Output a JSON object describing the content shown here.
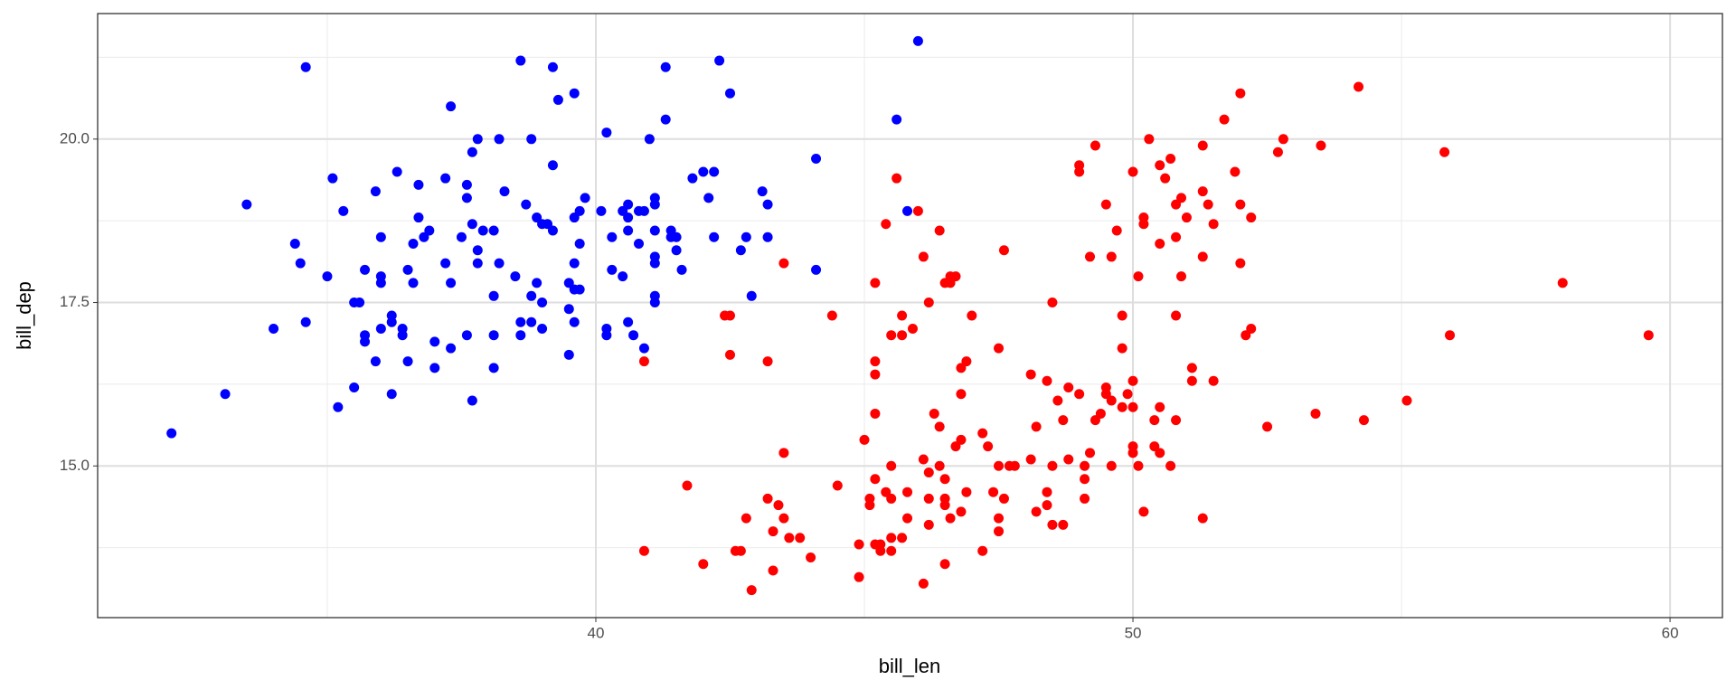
{
  "chart_data": {
    "type": "scatter",
    "x_label": "bill_len",
    "y_label": "bill_dep",
    "xlim": [
      30.725,
      60.975
    ],
    "ylim": [
      12.68,
      21.92
    ],
    "xticks": [
      40,
      50,
      60
    ],
    "yticks": [
      {
        "value": 15,
        "label": "15.0"
      },
      {
        "value": 17.5,
        "label": "17.5"
      },
      {
        "value": 20,
        "label": "20.0"
      }
    ],
    "xminor": [
      35,
      45,
      55
    ],
    "yminor": [
      13.75,
      16.25,
      18.75,
      21.25
    ],
    "grid": true,
    "series": [
      {
        "color": "#0000ff",
        "x": [
          32.1,
          33.1,
          33.5,
          34.0,
          34.4,
          34.5,
          34.6,
          34.6,
          35.0,
          35.1,
          35.2,
          35.3,
          35.5,
          35.5,
          35.6,
          35.7,
          35.7,
          35.7,
          35.9,
          35.9,
          36.0,
          36.0,
          36.0,
          36.0,
          36.2,
          36.2,
          36.2,
          36.3,
          36.4,
          36.4,
          36.5,
          36.5,
          36.6,
          36.6,
          36.7,
          36.7,
          36.8,
          36.9,
          37.0,
          37.0,
          37.2,
          37.2,
          37.3,
          37.3,
          37.3,
          37.5,
          37.6,
          37.6,
          37.6,
          37.7,
          37.7,
          37.7,
          37.8,
          37.8,
          37.8,
          37.9,
          38.1,
          38.1,
          38.1,
          38.1,
          38.2,
          38.2,
          38.3,
          38.5,
          38.6,
          38.6,
          38.6,
          38.7,
          38.8,
          38.8,
          38.8,
          38.9,
          38.9,
          39.0,
          39.0,
          39.0,
          39.1,
          39.2,
          39.2,
          39.2,
          39.3,
          39.5,
          39.5,
          39.5,
          39.6,
          39.6,
          39.6,
          39.6,
          39.6,
          39.7,
          39.7,
          39.7,
          39.8,
          40.1,
          40.2,
          40.2,
          40.2,
          40.3,
          40.3,
          40.5,
          40.5,
          40.6,
          40.6,
          40.6,
          40.6,
          40.7,
          40.8,
          40.8,
          40.9,
          40.9,
          41.0,
          41.1,
          41.1,
          41.1,
          41.1,
          41.1,
          41.1,
          41.1,
          41.3,
          41.3,
          41.4,
          41.4,
          41.5,
          41.5,
          41.6,
          41.8,
          42.0,
          42.1,
          42.2,
          42.2,
          42.3,
          42.5,
          42.7,
          42.8,
          42.9,
          43.1,
          43.2,
          43.2,
          44.1,
          44.1,
          45.6,
          45.8,
          46.0
        ],
        "values": [
          15.5,
          16.1,
          19.0,
          17.1,
          18.4,
          18.1,
          21.1,
          17.2,
          17.9,
          19.4,
          15.9,
          18.9,
          17.5,
          16.2,
          17.5,
          17.0,
          16.9,
          18.0,
          19.2,
          16.6,
          18.5,
          17.9,
          17.8,
          17.1,
          17.3,
          17.2,
          16.1,
          19.5,
          17.1,
          17.0,
          18.0,
          16.6,
          18.4,
          17.8,
          19.3,
          18.8,
          18.5,
          18.6,
          16.9,
          16.5,
          19.4,
          18.1,
          20.5,
          17.8,
          16.8,
          18.5,
          19.3,
          19.1,
          17.0,
          19.8,
          18.7,
          16.0,
          20.0,
          18.3,
          18.1,
          18.6,
          18.6,
          17.6,
          17.0,
          16.5,
          20.0,
          18.1,
          19.2,
          17.9,
          21.2,
          17.2,
          17.0,
          19.0,
          20.0,
          17.6,
          17.2,
          18.8,
          17.8,
          18.7,
          17.5,
          17.1,
          18.7,
          21.1,
          19.6,
          18.6,
          20.6,
          17.8,
          16.7,
          17.4,
          20.7,
          18.8,
          18.1,
          17.7,
          17.2,
          17.7,
          18.4,
          18.9,
          19.1,
          18.9,
          20.1,
          17.1,
          17.0,
          18.5,
          18.0,
          18.9,
          17.9,
          19.0,
          17.2,
          18.6,
          18.8,
          17.0,
          18.9,
          18.4,
          18.9,
          16.8,
          20.0,
          19.1,
          19.0,
          18.6,
          18.2,
          18.1,
          17.6,
          17.5,
          21.1,
          20.3,
          18.6,
          18.5,
          18.5,
          18.3,
          18.0,
          19.4,
          19.5,
          19.1,
          19.5,
          18.5,
          21.2,
          20.7,
          18.3,
          18.5,
          17.6,
          19.2,
          19.0,
          18.5,
          19.7,
          18.0,
          20.3,
          18.9,
          21.5
        ]
      },
      {
        "color": "#ff0000",
        "x": [
          40.9,
          40.9,
          41.7,
          42.0,
          42.4,
          42.5,
          42.5,
          42.6,
          42.7,
          42.8,
          42.9,
          43.2,
          43.2,
          43.3,
          43.3,
          43.4,
          43.5,
          43.5,
          43.5,
          43.6,
          43.8,
          44.0,
          44.4,
          44.5,
          44.9,
          44.9,
          45.0,
          45.1,
          45.1,
          45.2,
          45.2,
          45.2,
          45.2,
          45.2,
          45.2,
          45.3,
          45.3,
          45.4,
          45.4,
          45.5,
          45.5,
          45.5,
          45.5,
          45.5,
          45.6,
          45.7,
          45.7,
          45.7,
          45.8,
          45.8,
          45.9,
          46.0,
          46.1,
          46.1,
          46.1,
          46.2,
          46.2,
          46.2,
          46.2,
          46.3,
          46.4,
          46.4,
          46.4,
          46.5,
          46.5,
          46.5,
          46.5,
          46.5,
          46.6,
          46.6,
          46.6,
          46.7,
          46.7,
          46.8,
          46.8,
          46.8,
          46.8,
          46.9,
          46.9,
          47.0,
          47.2,
          47.2,
          47.3,
          47.4,
          47.5,
          47.5,
          47.5,
          47.5,
          47.6,
          47.6,
          47.7,
          47.8,
          48.1,
          48.1,
          48.2,
          48.2,
          48.4,
          48.4,
          48.4,
          48.5,
          48.5,
          48.5,
          48.6,
          48.7,
          48.7,
          48.8,
          48.8,
          49.0,
          49.0,
          49.0,
          49.1,
          49.1,
          49.1,
          49.2,
          49.2,
          49.3,
          49.3,
          49.4,
          49.5,
          49.5,
          49.5,
          49.6,
          49.6,
          49.6,
          49.7,
          49.8,
          49.8,
          49.8,
          49.9,
          50.0,
          50.0,
          50.0,
          50.0,
          50.0,
          50.1,
          50.1,
          50.2,
          50.2,
          50.2,
          50.3,
          50.4,
          50.4,
          50.5,
          50.5,
          50.5,
          50.5,
          50.6,
          50.7,
          50.7,
          50.8,
          50.8,
          50.8,
          50.8,
          50.9,
          50.9,
          51.0,
          51.1,
          51.1,
          51.3,
          51.3,
          51.3,
          51.3,
          51.4,
          51.5,
          51.5,
          51.7,
          51.9,
          52.0,
          52.0,
          52.0,
          52.1,
          52.2,
          52.2,
          52.5,
          52.7,
          52.8,
          53.4,
          53.5,
          54.2,
          54.3,
          55.1,
          55.8,
          55.9,
          58.0,
          59.6
        ],
        "values": [
          13.7,
          16.6,
          14.7,
          13.5,
          17.3,
          17.3,
          16.7,
          13.7,
          13.7,
          14.2,
          13.1,
          16.6,
          14.5,
          13.4,
          14.0,
          14.4,
          14.2,
          15.2,
          18.1,
          13.9,
          13.9,
          13.6,
          17.3,
          14.7,
          13.3,
          13.8,
          15.4,
          14.5,
          14.4,
          17.8,
          16.6,
          16.4,
          15.8,
          14.8,
          13.8,
          13.7,
          13.8,
          14.6,
          18.7,
          15.0,
          14.5,
          13.9,
          13.7,
          17.0,
          19.4,
          13.9,
          17.3,
          17.0,
          14.6,
          14.2,
          17.1,
          18.9,
          18.2,
          15.1,
          13.2,
          17.5,
          14.5,
          14.9,
          14.1,
          15.8,
          18.6,
          15.6,
          15.0,
          17.8,
          14.8,
          14.5,
          14.4,
          13.5,
          17.9,
          17.8,
          14.2,
          17.9,
          15.3,
          15.4,
          14.3,
          16.5,
          16.1,
          16.6,
          14.6,
          17.3,
          15.5,
          13.7,
          15.3,
          14.6,
          16.8,
          15.0,
          14.2,
          14.0,
          18.3,
          14.5,
          15.0,
          15.0,
          16.4,
          15.1,
          15.6,
          14.3,
          16.3,
          14.6,
          14.4,
          17.5,
          15.0,
          14.1,
          16.0,
          14.1,
          15.7,
          15.1,
          16.2,
          19.6,
          19.5,
          16.1,
          15.0,
          14.8,
          14.5,
          18.2,
          15.2,
          19.9,
          15.7,
          15.8,
          19.0,
          16.2,
          16.1,
          18.2,
          16.0,
          15.0,
          18.6,
          15.9,
          16.8,
          17.3,
          16.1,
          19.5,
          16.3,
          15.9,
          15.3,
          15.2,
          17.9,
          15.0,
          18.8,
          18.7,
          14.3,
          20.0,
          15.7,
          15.3,
          19.6,
          18.4,
          15.2,
          15.9,
          19.4,
          19.7,
          15.0,
          19.0,
          18.5,
          17.3,
          15.7,
          19.1,
          17.9,
          18.8,
          16.5,
          16.3,
          19.9,
          19.2,
          18.2,
          14.2,
          19.0,
          18.7,
          16.3,
          20.3,
          19.5,
          20.7,
          19.0,
          18.1,
          17.0,
          18.8,
          17.1,
          15.6,
          19.8,
          20.0,
          15.8,
          19.9,
          20.8,
          15.7,
          16.0,
          19.8,
          17.0,
          17.8,
          17.0
        ]
      }
    ]
  }
}
